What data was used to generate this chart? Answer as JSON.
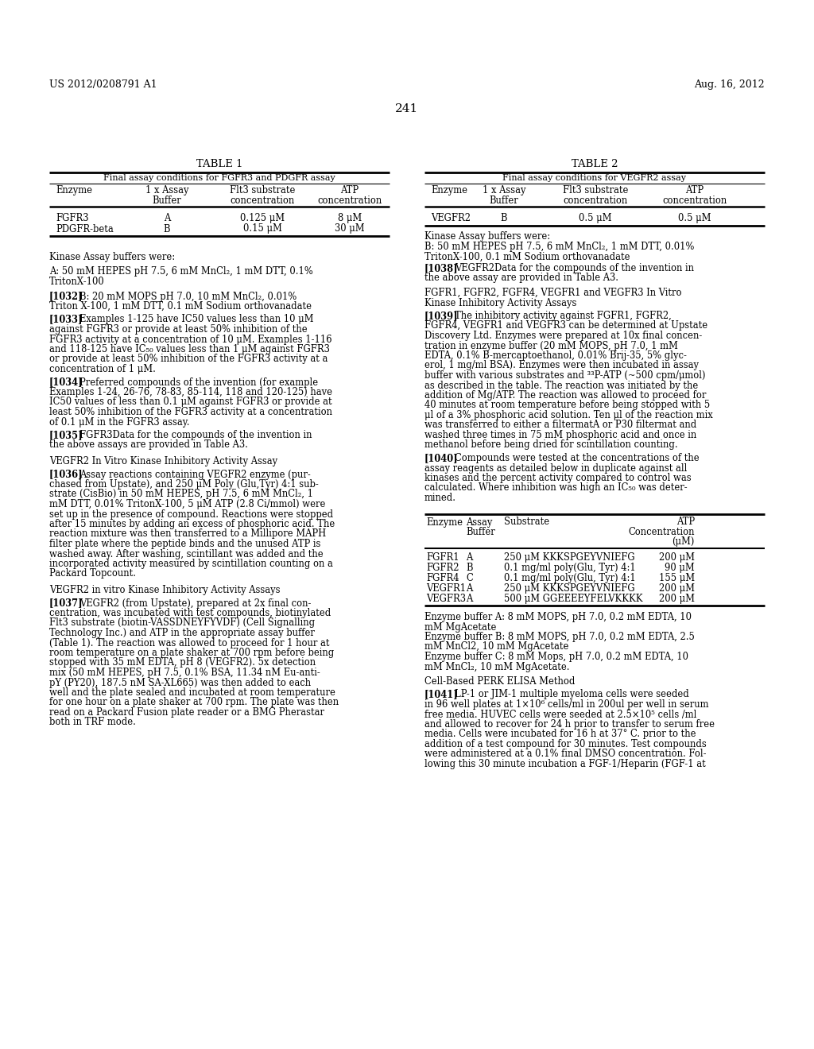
{
  "header_left": "US 2012/0208791 A1",
  "header_right": "Aug. 16, 2012",
  "page_number": "241",
  "table1_title": "TABLE 1",
  "table1_subtitle": "Final assay conditions for FGFR3 and PDGFR assay",
  "table1_rows": [
    [
      "FGFR3",
      "A",
      "0.125 μM",
      "8 μM"
    ],
    [
      "PDGFR-beta",
      "B",
      "0.15 μM",
      "30 μM"
    ]
  ],
  "table2_title": "TABLE 2",
  "table2_subtitle": "Final assay conditions for VEGFR2 assay",
  "table2_rows": [
    [
      "VEGFR2",
      "B",
      "0.5 μM",
      "0.5 μM"
    ]
  ],
  "table3_rows": [
    [
      "FGFR1",
      "A",
      "250 μM KKKSPGEYVNIEFG",
      "200 μM"
    ],
    [
      "FGFR2",
      "B",
      "0.1 mg/ml poly(Glu, Tyr) 4:1",
      "90 μM"
    ],
    [
      "FGFR4",
      "C",
      "0.1 mg/ml poly(Glu, Tyr) 4:1",
      "155 μM"
    ],
    [
      "VEGFR1",
      "A",
      "250 μM KKKSPGEYVNIEFG",
      "200 μM"
    ],
    [
      "VEGFR3",
      "A",
      "500 μM GGEEEEYFELVKKKK",
      "200 μM"
    ]
  ]
}
